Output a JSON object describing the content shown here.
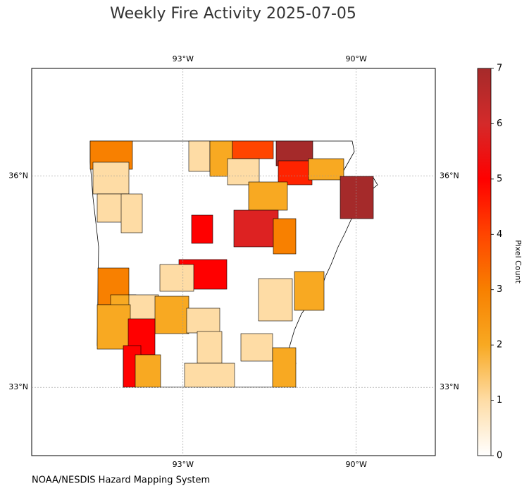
{
  "chart_data": {
    "type": "choropleth",
    "title": "Weekly Fire Activity 2025-07-05",
    "xlim": [
      -95.62,
      -88.63
    ],
    "ylim": [
      32.03,
      37.53
    ],
    "xticks": [
      {
        "value": -93,
        "label": "93°W"
      },
      {
        "value": -90,
        "label": "90°W"
      }
    ],
    "yticks": [
      {
        "value": 36,
        "label": "36°N"
      },
      {
        "value": 33,
        "label": "33°N"
      }
    ],
    "grid": true,
    "values": [
      3,
      1,
      1,
      1,
      1,
      2,
      4,
      1,
      7,
      4.5,
      2,
      7,
      2,
      5,
      5.8,
      3,
      5,
      3,
      1,
      2,
      1,
      2,
      1,
      2,
      5,
      5,
      2,
      1,
      1,
      1,
      2,
      1,
      2
    ],
    "colorbar": {
      "label": "Pixel Count",
      "lim": [
        0,
        7
      ],
      "ticks": [
        0,
        1,
        2,
        3,
        4,
        5,
        6,
        7
      ],
      "colors": [
        "#ffffff",
        "#fedca5",
        "#f8a922",
        "#f88000",
        "#ff4500",
        "#ff0000",
        "#d42a2a",
        "#a52a2a"
      ]
    },
    "source": "NOAA/NESDIS Hazard Mapping System"
  }
}
